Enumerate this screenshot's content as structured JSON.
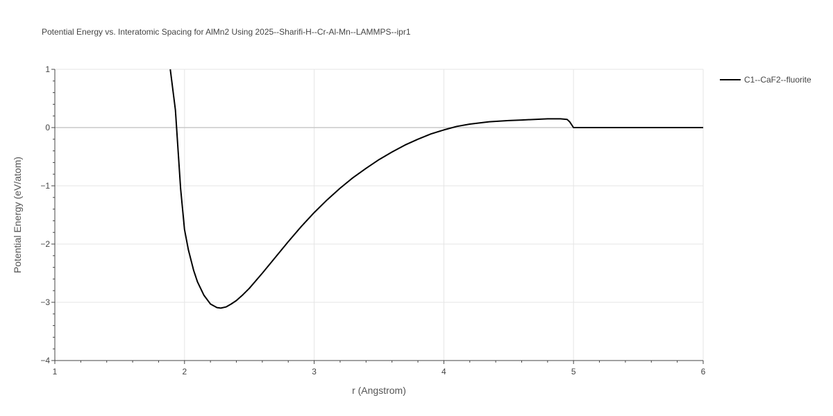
{
  "chart_data": {
    "type": "line",
    "title": "Potential Energy vs. Interatomic Spacing for AlMn2 Using 2025--Sharifi-H--Cr-Al-Mn--LAMMPS--ipr1",
    "xlabel": "r (Angstrom)",
    "ylabel": "Potential Energy (eV/atom)",
    "xlim": [
      1,
      6
    ],
    "ylim": [
      -4,
      1
    ],
    "x_ticks": [
      1,
      2,
      3,
      4,
      5,
      6
    ],
    "x_tick_labels": [
      "1",
      "2",
      "3",
      "4",
      "5",
      "6"
    ],
    "y_ticks": [
      1,
      0,
      -1,
      -2,
      -3,
      -4
    ],
    "y_tick_labels": [
      "1",
      "0",
      "−1",
      "−2",
      "−3",
      "−4"
    ],
    "grid": true,
    "legend_position": "top-right",
    "series": [
      {
        "name": "C1--CaF2--fluorite",
        "color": "#000000",
        "x": [
          1.89,
          1.93,
          1.97,
          2.0,
          2.03,
          2.07,
          2.1,
          2.15,
          2.2,
          2.25,
          2.28,
          2.32,
          2.36,
          2.4,
          2.45,
          2.5,
          2.6,
          2.7,
          2.8,
          2.9,
          3.0,
          3.1,
          3.2,
          3.3,
          3.4,
          3.5,
          3.6,
          3.7,
          3.8,
          3.9,
          4.0,
          4.1,
          4.2,
          4.35,
          4.5,
          4.6,
          4.7,
          4.8,
          4.87,
          4.9,
          4.95,
          4.97,
          5.0,
          5.1,
          5.5,
          6.0
        ],
        "y": [
          1.0,
          0.3,
          -1.05,
          -1.75,
          -2.1,
          -2.45,
          -2.65,
          -2.88,
          -3.03,
          -3.09,
          -3.1,
          -3.08,
          -3.03,
          -2.97,
          -2.87,
          -2.76,
          -2.5,
          -2.23,
          -1.96,
          -1.7,
          -1.46,
          -1.24,
          -1.04,
          -0.86,
          -0.7,
          -0.55,
          -0.42,
          -0.3,
          -0.2,
          -0.11,
          -0.04,
          0.02,
          0.06,
          0.1,
          0.12,
          0.13,
          0.14,
          0.15,
          0.15,
          0.15,
          0.14,
          0.1,
          0.0,
          0.0,
          0.0,
          0.0
        ]
      }
    ]
  }
}
